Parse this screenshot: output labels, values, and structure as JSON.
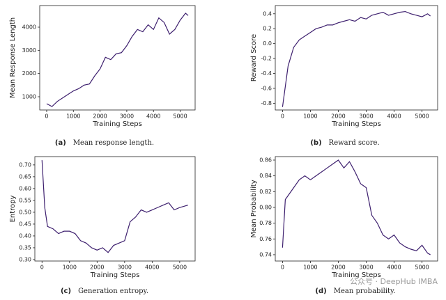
{
  "chart_data": [
    {
      "type": "line",
      "color": "#3d1f6e",
      "xlabel": "Training Steps",
      "ylabel": "Mean Response Length",
      "caption_label": "(a)",
      "caption": "Mean response length.",
      "x": [
        0,
        200,
        400,
        600,
        800,
        1000,
        1200,
        1400,
        1600,
        1800,
        2000,
        2200,
        2400,
        2600,
        2800,
        3000,
        3200,
        3400,
        3600,
        3800,
        4000,
        4200,
        4400,
        4600,
        4800,
        5000,
        5200,
        5300
      ],
      "values": [
        700,
        580,
        800,
        950,
        1100,
        1250,
        1350,
        1500,
        1550,
        1900,
        2200,
        2700,
        2600,
        2850,
        2900,
        3200,
        3600,
        3900,
        3800,
        4100,
        3900,
        4400,
        4200,
        3700,
        3900,
        4300,
        4600,
        4500
      ],
      "xlim": [
        -260,
        5560
      ],
      "ylim": [
        430,
        4930
      ],
      "xticks": [
        0,
        1000,
        2000,
        3000,
        4000,
        5000
      ],
      "yticks": [
        1000,
        2000,
        3000,
        4000
      ]
    },
    {
      "type": "line",
      "color": "#3d1f6e",
      "xlabel": "Training Steps",
      "ylabel": "Reward Score",
      "caption_label": "(b)",
      "caption": "Reward score.",
      "x": [
        0,
        200,
        400,
        600,
        800,
        1000,
        1200,
        1400,
        1600,
        1800,
        2000,
        2200,
        2400,
        2600,
        2800,
        3000,
        3200,
        3400,
        3600,
        3800,
        4000,
        4200,
        4400,
        4600,
        4800,
        5000,
        5200,
        5300
      ],
      "values": [
        -0.85,
        -0.3,
        -0.05,
        0.05,
        0.1,
        0.15,
        0.2,
        0.22,
        0.25,
        0.25,
        0.28,
        0.3,
        0.32,
        0.3,
        0.35,
        0.33,
        0.38,
        0.4,
        0.42,
        0.38,
        0.4,
        0.42,
        0.43,
        0.4,
        0.38,
        0.36,
        0.4,
        0.37
      ],
      "xlim": [
        -260,
        5560
      ],
      "ylim": [
        -0.89,
        0.51
      ],
      "xticks": [
        0,
        1000,
        2000,
        3000,
        4000,
        5000
      ],
      "yticks": [
        -0.8,
        -0.6,
        -0.4,
        -0.2,
        {
          "value": 0,
          "label": "0.0"
        },
        0.2,
        0.4
      ]
    },
    {
      "type": "line",
      "color": "#3d1f6e",
      "xlabel": "Training Steps",
      "ylabel": "Entropy",
      "caption_label": "(c)",
      "caption": "Generation entropy.",
      "x": [
        0,
        100,
        200,
        400,
        600,
        800,
        1000,
        1200,
        1400,
        1600,
        1800,
        2000,
        2200,
        2400,
        2600,
        2800,
        3000,
        3200,
        3400,
        3600,
        3800,
        4000,
        4200,
        4400,
        4600,
        4800,
        5000,
        5300
      ],
      "values": [
        0.72,
        0.52,
        0.44,
        0.43,
        0.41,
        0.42,
        0.42,
        0.41,
        0.38,
        0.37,
        0.35,
        0.34,
        0.35,
        0.33,
        0.36,
        0.37,
        0.38,
        0.46,
        0.48,
        0.51,
        0.5,
        0.51,
        0.52,
        0.53,
        0.54,
        0.51,
        0.52,
        0.53
      ],
      "xlim": [
        -260,
        5560
      ],
      "ylim": [
        0.294,
        0.735
      ],
      "xticks": [
        0,
        1000,
        2000,
        3000,
        4000,
        5000
      ],
      "yticks": [
        {
          "value": 0.3,
          "label": "0.30"
        },
        0.35,
        {
          "value": 0.4,
          "label": "0.40"
        },
        0.45,
        {
          "value": 0.5,
          "label": "0.50"
        },
        0.55,
        {
          "value": 0.6,
          "label": "0.60"
        },
        0.65,
        {
          "value": 0.7,
          "label": "0.70"
        }
      ]
    },
    {
      "type": "line",
      "color": "#3d1f6e",
      "xlabel": "Training Steps",
      "ylabel": "Mean Probability",
      "caption_label": "(d)",
      "caption": "Mean probability.",
      "x": [
        0,
        100,
        200,
        400,
        600,
        800,
        1000,
        1200,
        1400,
        1600,
        1800,
        2000,
        2200,
        2400,
        2600,
        2800,
        3000,
        3200,
        3400,
        3600,
        3800,
        4000,
        4200,
        4400,
        4600,
        4800,
        5000,
        5200,
        5300
      ],
      "values": [
        0.749,
        0.81,
        0.815,
        0.825,
        0.835,
        0.84,
        0.835,
        0.84,
        0.845,
        0.85,
        0.855,
        0.86,
        0.85,
        0.858,
        0.845,
        0.83,
        0.825,
        0.79,
        0.78,
        0.765,
        0.76,
        0.765,
        0.755,
        0.75,
        0.747,
        0.745,
        0.752,
        0.742,
        0.74
      ],
      "xlim": [
        -260,
        5560
      ],
      "ylim": [
        0.732,
        0.8644
      ],
      "xticks": [
        0,
        1000,
        2000,
        3000,
        4000,
        5000
      ],
      "yticks": [
        0.74,
        0.76,
        0.78,
        {
          "value": 0.8,
          "label": "0.80"
        },
        0.82,
        0.84,
        0.86
      ]
    }
  ],
  "watermark": "公众号 · DeepHub IMBA"
}
